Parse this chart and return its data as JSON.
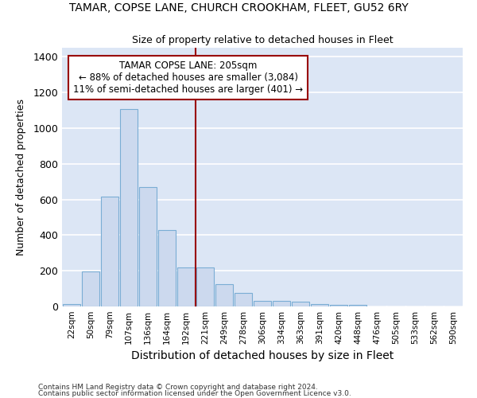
{
  "title": "TAMAR, COPSE LANE, CHURCH CROOKHAM, FLEET, GU52 6RY",
  "subtitle": "Size of property relative to detached houses in Fleet",
  "xlabel": "Distribution of detached houses by size in Fleet",
  "ylabel": "Number of detached properties",
  "footnote1": "Contains HM Land Registry data © Crown copyright and database right 2024.",
  "footnote2": "Contains public sector information licensed under the Open Government Licence v3.0.",
  "categories": [
    "22sqm",
    "50sqm",
    "79sqm",
    "107sqm",
    "136sqm",
    "164sqm",
    "192sqm",
    "221sqm",
    "249sqm",
    "278sqm",
    "306sqm",
    "334sqm",
    "363sqm",
    "391sqm",
    "420sqm",
    "448sqm",
    "476sqm",
    "505sqm",
    "533sqm",
    "562sqm",
    "590sqm"
  ],
  "values": [
    15,
    195,
    615,
    1105,
    670,
    430,
    220,
    220,
    125,
    75,
    30,
    30,
    25,
    15,
    10,
    10,
    0,
    0,
    0,
    0,
    0
  ],
  "bar_color": "#ccd9ee",
  "bar_edge_color": "#7aadd4",
  "vline_x_idx": 6.5,
  "vline_color": "#990000",
  "annotation_title": "TAMAR COPSE LANE: 205sqm",
  "annotation_line1": "← 88% of detached houses are smaller (3,084)",
  "annotation_line2": "11% of semi-detached houses are larger (401) →",
  "annotation_box_edge_color": "#990000",
  "annotation_box_fill": "#ffffff",
  "ylim": [
    0,
    1450
  ],
  "yticks": [
    0,
    200,
    400,
    600,
    800,
    1000,
    1200,
    1400
  ],
  "fig_background": "#ffffff",
  "plot_background": "#dce6f5",
  "grid_color": "#ffffff",
  "title_fontsize": 10,
  "subtitle_fontsize": 9
}
